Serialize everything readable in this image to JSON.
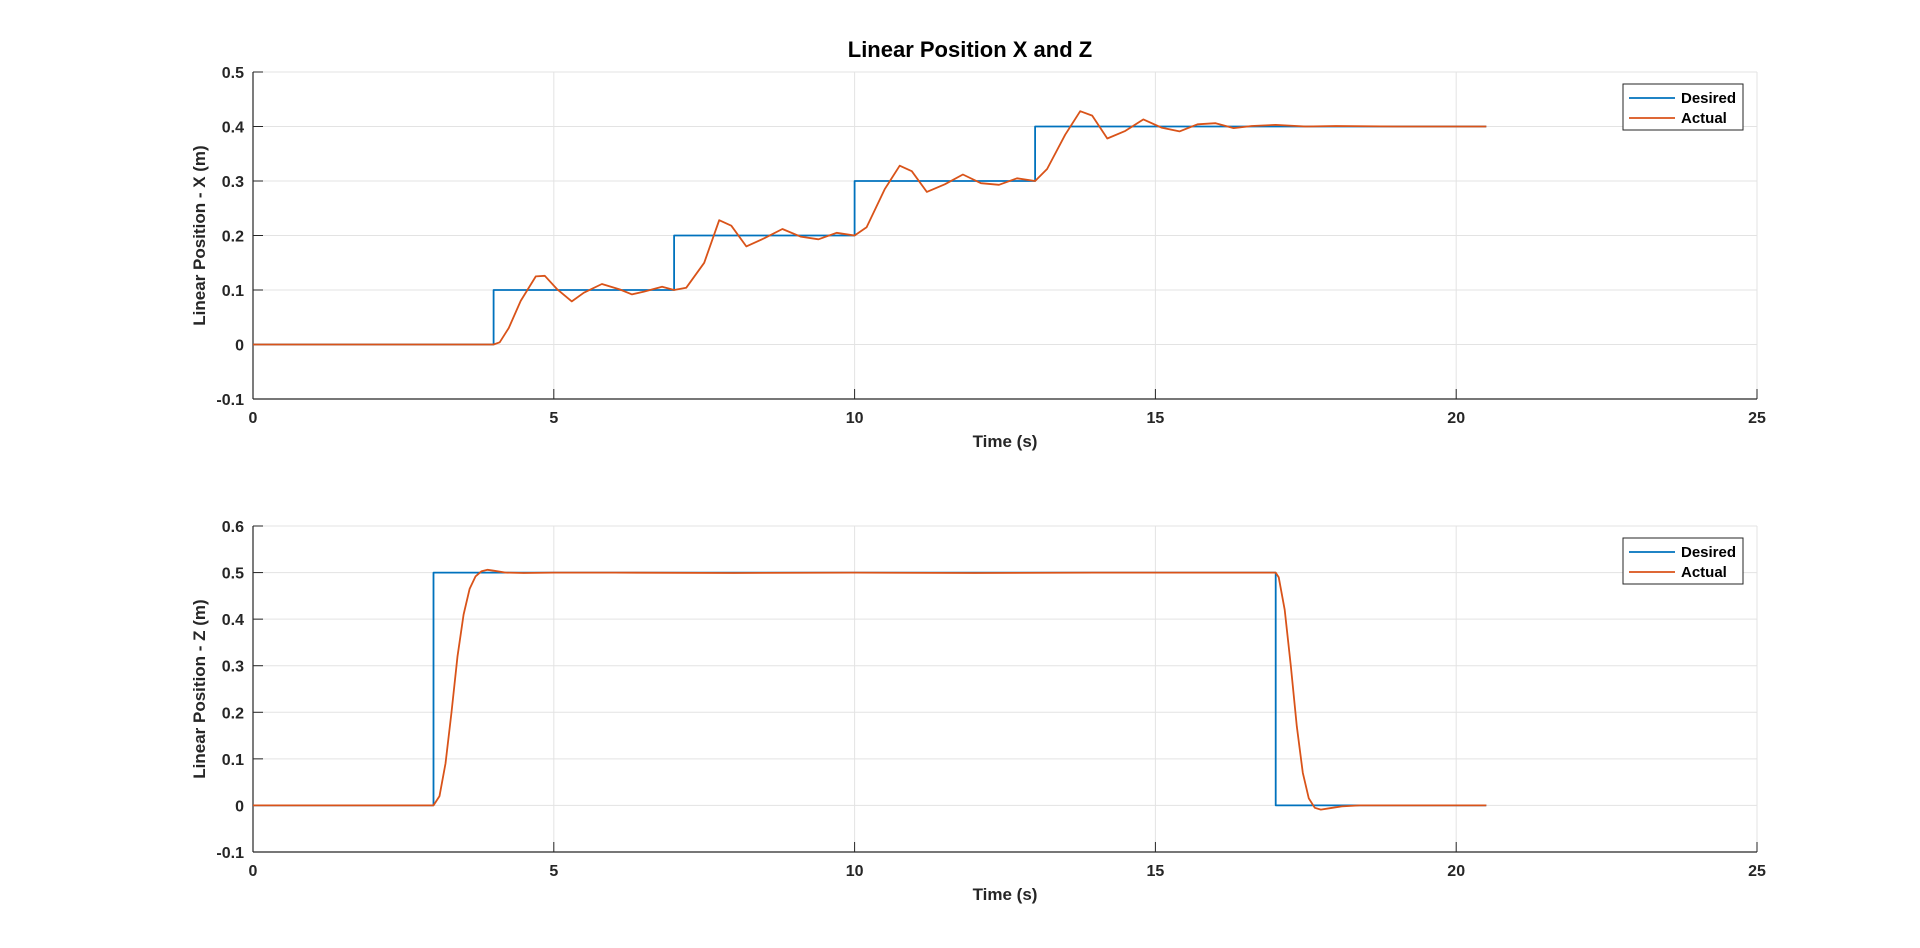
{
  "figure_title": "Linear Position X and Z",
  "colors": {
    "desired": "#0072BD",
    "actual": "#D95319",
    "grid": "#E3E3E3",
    "axis": "#262626"
  },
  "chart_data": [
    {
      "type": "line",
      "title": "Linear Position X and Z",
      "xlabel": "Time (s)",
      "ylabel": "Linear Position - X (m)",
      "xlim": [
        0,
        25
      ],
      "ylim": [
        -0.1,
        0.5
      ],
      "xticks": [
        0,
        5,
        10,
        15,
        20,
        25
      ],
      "yticks": [
        -0.1,
        0,
        0.1,
        0.2,
        0.3,
        0.4,
        0.5
      ],
      "grid": true,
      "legend_position": "top-right",
      "series": [
        {
          "name": "Desired",
          "color": "#0072BD",
          "x": [
            0,
            4,
            4,
            7,
            7,
            10,
            10,
            13,
            13,
            20.5
          ],
          "y": [
            0,
            0,
            0.1,
            0.1,
            0.2,
            0.2,
            0.3,
            0.3,
            0.4,
            0.4
          ]
        },
        {
          "name": "Actual",
          "color": "#D95319",
          "x": [
            0,
            4.0,
            4.1,
            4.25,
            4.45,
            4.7,
            4.85,
            5.05,
            5.3,
            5.5,
            5.8,
            6.1,
            6.3,
            6.5,
            6.8,
            7.0,
            7.2,
            7.5,
            7.75,
            7.95,
            8.2,
            8.5,
            8.8,
            9.1,
            9.4,
            9.7,
            10.0,
            10.2,
            10.5,
            10.75,
            10.95,
            11.2,
            11.5,
            11.8,
            12.1,
            12.4,
            12.7,
            13.0,
            13.2,
            13.5,
            13.75,
            13.95,
            14.2,
            14.5,
            14.8,
            15.1,
            15.4,
            15.7,
            16.0,
            16.3,
            16.6,
            17.0,
            17.5,
            18.0,
            19.0,
            20.5
          ],
          "y": [
            0,
            0,
            0.004,
            0.03,
            0.08,
            0.125,
            0.126,
            0.102,
            0.079,
            0.095,
            0.111,
            0.101,
            0.092,
            0.097,
            0.106,
            0.1,
            0.104,
            0.15,
            0.228,
            0.218,
            0.18,
            0.195,
            0.212,
            0.198,
            0.193,
            0.205,
            0.2,
            0.215,
            0.285,
            0.328,
            0.318,
            0.28,
            0.294,
            0.312,
            0.296,
            0.293,
            0.305,
            0.3,
            0.322,
            0.385,
            0.428,
            0.42,
            0.378,
            0.392,
            0.413,
            0.398,
            0.391,
            0.404,
            0.406,
            0.397,
            0.401,
            0.403,
            0.4,
            0.401,
            0.4,
            0.4
          ]
        }
      ]
    },
    {
      "type": "line",
      "title": "",
      "xlabel": "Time (s)",
      "ylabel": "Linear Position - Z (m)",
      "xlim": [
        0,
        25
      ],
      "ylim": [
        -0.1,
        0.6
      ],
      "xticks": [
        0,
        5,
        10,
        15,
        20,
        25
      ],
      "yticks": [
        -0.1,
        0,
        0.1,
        0.2,
        0.3,
        0.4,
        0.5,
        0.6
      ],
      "grid": true,
      "legend_position": "top-right",
      "series": [
        {
          "name": "Desired",
          "color": "#0072BD",
          "x": [
            0,
            3,
            3,
            17,
            17,
            20.5
          ],
          "y": [
            0,
            0,
            0.5,
            0.5,
            0,
            0
          ]
        },
        {
          "name": "Actual",
          "color": "#D95319",
          "x": [
            0,
            3.0,
            3.1,
            3.2,
            3.3,
            3.4,
            3.5,
            3.6,
            3.7,
            3.8,
            3.9,
            4.0,
            4.2,
            4.5,
            5.0,
            6.0,
            8.0,
            10.0,
            12.0,
            14.0,
            16.0,
            17.0,
            17.05,
            17.15,
            17.25,
            17.35,
            17.45,
            17.55,
            17.65,
            17.75,
            17.9,
            18.1,
            18.4,
            19.0,
            20.5
          ],
          "y": [
            0,
            0,
            0.02,
            0.09,
            0.2,
            0.32,
            0.41,
            0.465,
            0.492,
            0.503,
            0.506,
            0.504,
            0.5,
            0.499,
            0.5,
            0.5,
            0.499,
            0.5,
            0.499,
            0.5,
            0.5,
            0.5,
            0.49,
            0.42,
            0.3,
            0.17,
            0.07,
            0.015,
            -0.005,
            -0.009,
            -0.006,
            -0.002,
            0,
            0,
            0
          ]
        }
      ]
    }
  ]
}
